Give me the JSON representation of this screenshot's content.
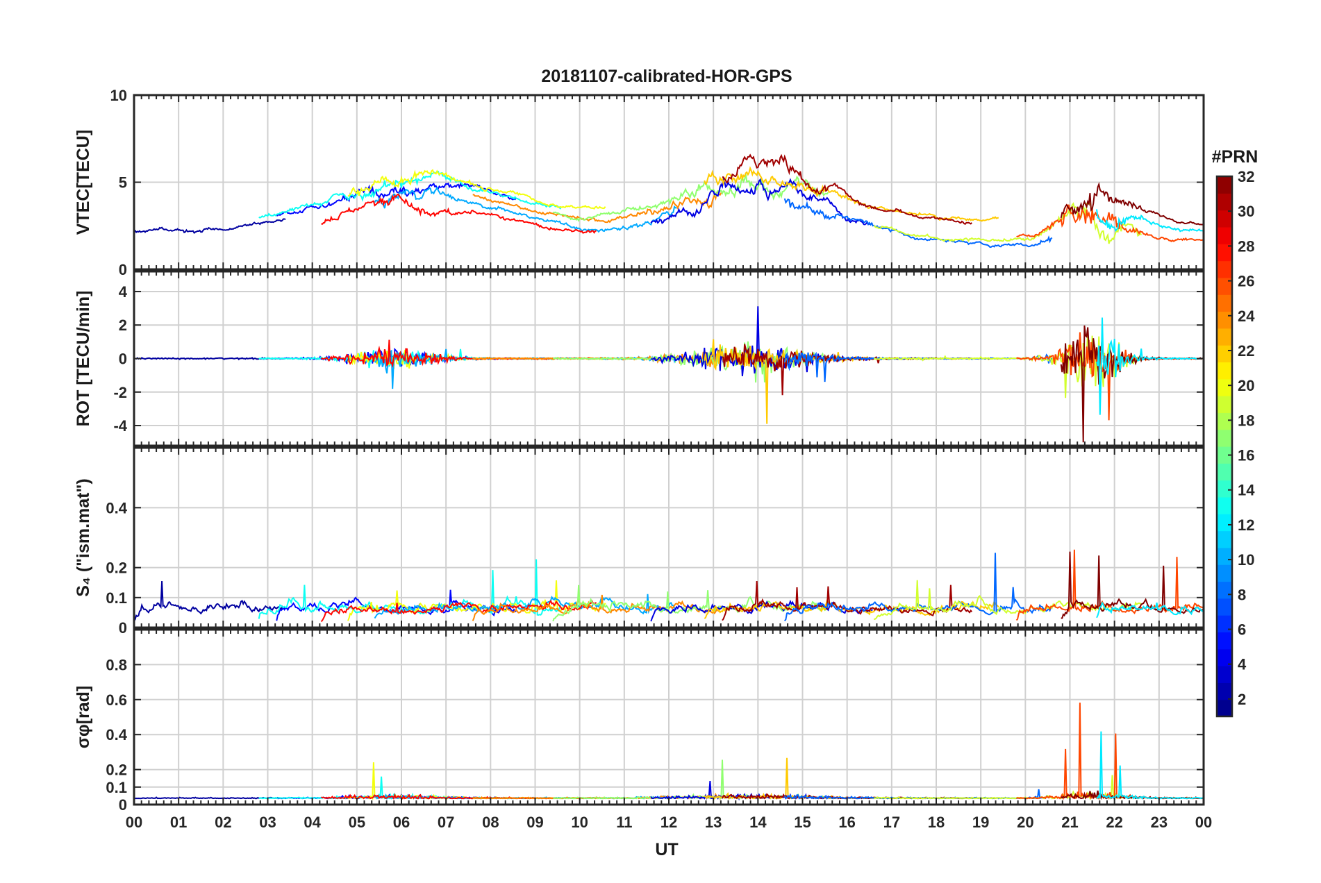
{
  "chart_data": {
    "type": "line",
    "title": "20181107-calibrated-HOR-GPS",
    "xlabel": "UT",
    "x_tick_labels": [
      "00",
      "01",
      "02",
      "03",
      "04",
      "05",
      "06",
      "07",
      "08",
      "09",
      "10",
      "11",
      "12",
      "13",
      "14",
      "15",
      "16",
      "17",
      "18",
      "19",
      "20",
      "21",
      "22",
      "23",
      "00"
    ],
    "x_range_hours": [
      0,
      24
    ],
    "grid": true,
    "colormap": "jet",
    "colorbar": {
      "title": "#PRN",
      "range": [
        1,
        32
      ],
      "tick_values": [
        2,
        4,
        6,
        8,
        10,
        12,
        14,
        16,
        18,
        20,
        22,
        24,
        26,
        28,
        30,
        32
      ],
      "tick_labels": [
        "2",
        "4",
        "6",
        "8",
        "10",
        "12",
        "14",
        "16",
        "18",
        "20",
        "22",
        "24",
        "26",
        "28",
        "30",
        "32"
      ],
      "placement": "right"
    },
    "panels": [
      {
        "id": "vtec",
        "ylabel": "VTEC[TECU]",
        "ylim": [
          0,
          10
        ],
        "y_tick_values": [
          0,
          5,
          10
        ],
        "y_tick_labels": [
          "0",
          "5",
          "10"
        ]
      },
      {
        "id": "rot",
        "ylabel": "ROT [TECU/min]",
        "ylim": [
          -5.2,
          5.2
        ],
        "y_tick_values": [
          -4,
          -2,
          0,
          2,
          4
        ],
        "y_tick_labels": [
          "-4",
          "-2",
          "0",
          "2",
          "4"
        ]
      },
      {
        "id": "s4",
        "ylabel": "S₄ (\"ism.mat\")",
        "ylim": [
          0,
          0.6
        ],
        "y_tick_values": [
          0,
          0.1,
          0.2,
          0.4
        ],
        "y_tick_labels": [
          "0",
          "0.1",
          "0.2",
          "0.4"
        ]
      },
      {
        "id": "sigma",
        "ylabel": "σφ[rad]",
        "ylim": [
          0,
          1.0
        ],
        "y_tick_values": [
          0,
          0.1,
          0.2,
          0.4,
          0.6,
          0.8
        ],
        "y_tick_labels": [
          "0",
          "0.1",
          "0.2",
          "0.4",
          "0.6",
          "0.8"
        ]
      }
    ],
    "series_summary": [
      {
        "prn": 2,
        "start_h": 0.0,
        "end_h": 3.4
      },
      {
        "prn": 5,
        "start_h": 3.2,
        "end_h": 8.6
      },
      {
        "prn": 13,
        "start_h": 2.8,
        "end_h": 9.6
      },
      {
        "prn": 20,
        "start_h": 4.8,
        "end_h": 10.6
      },
      {
        "prn": 10,
        "start_h": 5.4,
        "end_h": 12.2
      },
      {
        "prn": 28,
        "start_h": 4.2,
        "end_h": 10.4
      },
      {
        "prn": 24,
        "start_h": 7.6,
        "end_h": 13.2
      },
      {
        "prn": 17,
        "start_h": 9.4,
        "end_h": 15.6
      },
      {
        "prn": 4,
        "start_h": 11.6,
        "end_h": 16.6
      },
      {
        "prn": 22,
        "start_h": 12.8,
        "end_h": 19.4
      },
      {
        "prn": 31,
        "start_h": 13.2,
        "end_h": 18.8
      },
      {
        "prn": 8,
        "start_h": 14.6,
        "end_h": 20.6
      },
      {
        "prn": 19,
        "start_h": 16.6,
        "end_h": 22.6
      },
      {
        "prn": 26,
        "start_h": 19.8,
        "end_h": 24.0
      },
      {
        "prn": 32,
        "start_h": 20.8,
        "end_h": 24.0
      },
      {
        "prn": 12,
        "start_h": 21.6,
        "end_h": 24.0
      }
    ]
  }
}
